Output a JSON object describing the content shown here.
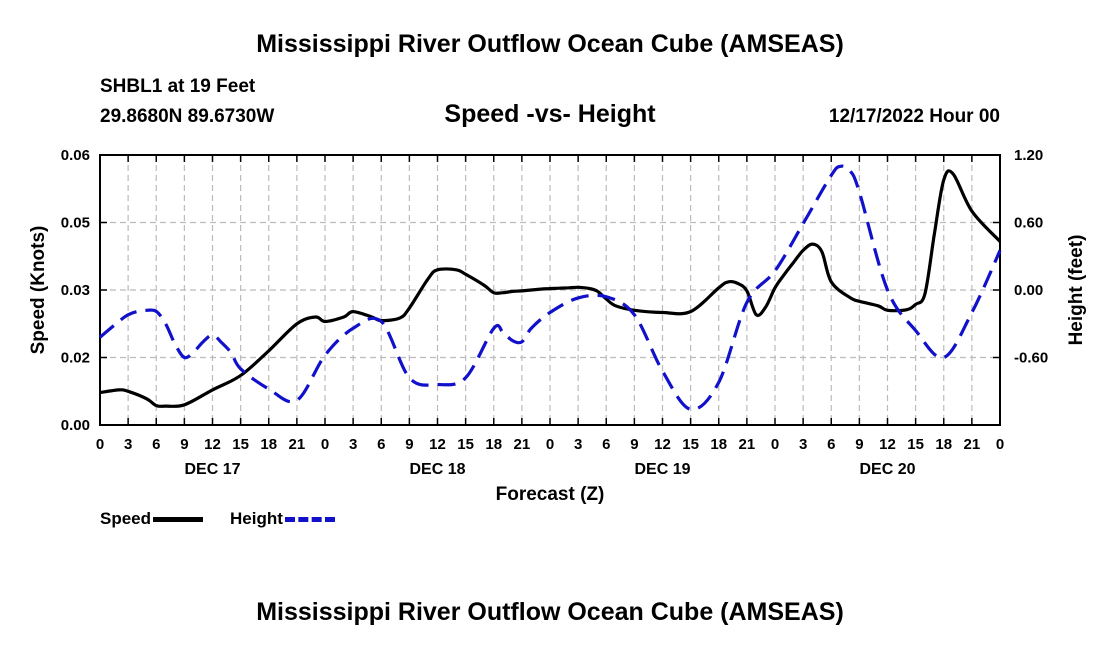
{
  "header": {
    "title": "Mississippi River Outflow Ocean Cube (AMSEAS)",
    "station": "SHBL1 at 19 Feet",
    "coords": "29.8680N  89.6730W",
    "subtitle": "Speed -vs- Height",
    "datetime": "12/17/2022 Hour 00"
  },
  "footer": {
    "title": "Mississippi River Outflow Ocean Cube (AMSEAS)"
  },
  "legend": {
    "speed_label": "Speed",
    "height_label": "Height"
  },
  "colors": {
    "speed": "#000000",
    "height": "#1111cc",
    "grid": "#bbbbbb"
  },
  "chart_data": {
    "type": "line",
    "xlabel": "Forecast (Z)",
    "ylabel": "Speed (Knots)",
    "ylabel_right": "Height (feet)",
    "xlim": [
      0,
      96
    ],
    "ylim": [
      0.0,
      0.06
    ],
    "ylim_right": [
      -1.2,
      1.2
    ],
    "x_ticks": [
      0,
      3,
      6,
      9,
      12,
      15,
      18,
      21,
      24,
      27,
      30,
      33,
      36,
      39,
      42,
      45,
      48,
      51,
      54,
      57,
      60,
      63,
      66,
      69,
      72,
      75,
      78,
      81,
      84,
      87,
      90,
      93,
      96
    ],
    "x_tick_labels": [
      "0",
      "3",
      "6",
      "9",
      "12",
      "15",
      "18",
      "21",
      "0",
      "3",
      "6",
      "9",
      "12",
      "15",
      "18",
      "21",
      "0",
      "3",
      "6",
      "9",
      "12",
      "15",
      "18",
      "21",
      "0",
      "3",
      "6",
      "9",
      "12",
      "15",
      "18",
      "21",
      "0"
    ],
    "y_ticks": [
      0.0,
      0.015,
      0.03,
      0.045,
      0.06
    ],
    "y_tick_labels": [
      "0.00",
      "0.02",
      "0.03",
      "0.05",
      "0.06"
    ],
    "y_right_ticks": [
      -0.6,
      0.0,
      0.6,
      1.2
    ],
    "y_right_tick_labels": [
      "-0.60",
      "0.00",
      "0.60",
      "1.20"
    ],
    "day_labels": [
      {
        "x": 12,
        "label": "DEC 17"
      },
      {
        "x": 36,
        "label": "DEC 18"
      },
      {
        "x": 60,
        "label": "DEC 19"
      },
      {
        "x": 84,
        "label": "DEC 20"
      }
    ],
    "grid": true,
    "series": [
      {
        "name": "Speed",
        "axis": "left",
        "style": "solid",
        "x": [
          0,
          2,
          3,
          5,
          6,
          7,
          9,
          12,
          15,
          18,
          21,
          23,
          24,
          26,
          27,
          29,
          30,
          32,
          33,
          35,
          36,
          38,
          39,
          41,
          42,
          43,
          44,
          45,
          47,
          48,
          49,
          50,
          51,
          52,
          53,
          54,
          55,
          57,
          60,
          63,
          66,
          67,
          68,
          69,
          70,
          71,
          72,
          73,
          74,
          75,
          76,
          77,
          78,
          80,
          81,
          83,
          84,
          86,
          87,
          88,
          89,
          90,
          91,
          93,
          96
        ],
        "y": [
          0.0072,
          0.0078,
          0.0075,
          0.0058,
          0.0043,
          0.0042,
          0.0045,
          0.0078,
          0.011,
          0.0165,
          0.0225,
          0.024,
          0.023,
          0.024,
          0.0252,
          0.024,
          0.0232,
          0.0238,
          0.026,
          0.0325,
          0.0345,
          0.0345,
          0.0335,
          0.031,
          0.0294,
          0.0294,
          0.0297,
          0.0298,
          0.0302,
          0.0303,
          0.0304,
          0.0305,
          0.0306,
          0.0304,
          0.0298,
          0.028,
          0.0265,
          0.0255,
          0.025,
          0.0252,
          0.0305,
          0.0318,
          0.0315,
          0.0298,
          0.0245,
          0.0262,
          0.0305,
          0.0335,
          0.0362,
          0.0388,
          0.0402,
          0.0385,
          0.0318,
          0.0283,
          0.0275,
          0.0265,
          0.0255,
          0.0256,
          0.0268,
          0.0292,
          0.0425,
          0.0545,
          0.0558,
          0.0475,
          0.0408
        ]
      },
      {
        "name": "Height",
        "axis": "right",
        "style": "dashed",
        "x": [
          0,
          2,
          3,
          4,
          5,
          6,
          7,
          8,
          9,
          10,
          11,
          12,
          13,
          14,
          15,
          18,
          21,
          24,
          27,
          30,
          33,
          36,
          39,
          42,
          43,
          44,
          45,
          46,
          48,
          51,
          54,
          57,
          60,
          63,
          66,
          69,
          72,
          75,
          78,
          79,
          80,
          81,
          84,
          87,
          90,
          93,
          96
        ],
        "y": [
          -0.42,
          -0.28,
          -0.22,
          -0.19,
          -0.18,
          -0.19,
          -0.3,
          -0.48,
          -0.6,
          -0.55,
          -0.46,
          -0.4,
          -0.47,
          -0.56,
          -0.7,
          -0.88,
          -0.98,
          -0.58,
          -0.34,
          -0.28,
          -0.78,
          -0.84,
          -0.78,
          -0.34,
          -0.38,
          -0.45,
          -0.46,
          -0.34,
          -0.2,
          -0.07,
          -0.06,
          -0.22,
          -0.72,
          -1.06,
          -0.82,
          -0.11,
          0.17,
          0.59,
          1.02,
          1.1,
          1.06,
          0.87,
          0.0,
          -0.36,
          -0.6,
          -0.2,
          0.35
        ]
      }
    ]
  }
}
